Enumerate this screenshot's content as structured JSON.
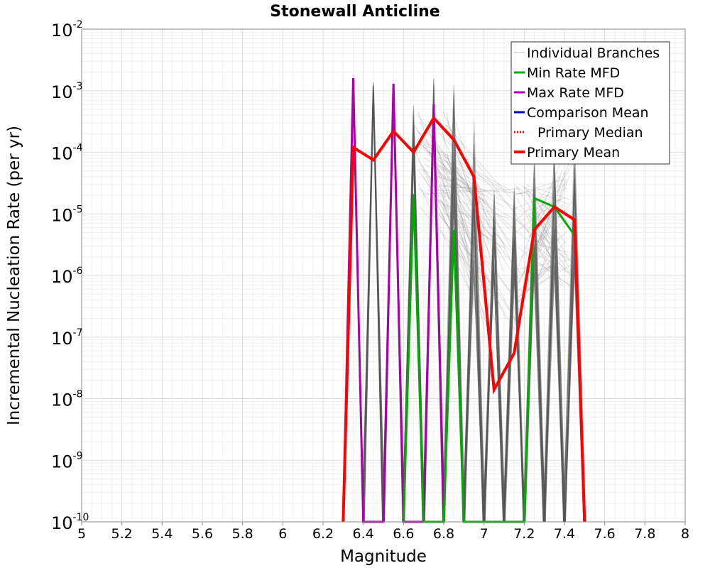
{
  "chart_data": {
    "type": "line",
    "title": "Stonewall Anticline",
    "xlabel": "Magnitude",
    "ylabel": "Incremental Nucleation Rate (per yr)",
    "xlim": [
      5,
      8
    ],
    "ylim": [
      1e-10,
      0.01
    ],
    "y_scale": "log",
    "grid": true,
    "legend_position": "top-right",
    "x_ticks": [
      "5",
      "5.2",
      "5.4",
      "5.6",
      "5.8",
      "6",
      "6.2",
      "6.4",
      "6.6",
      "6.8",
      "7",
      "7.2",
      "7.4",
      "7.6",
      "7.8",
      "8"
    ],
    "y_ticks": [
      {
        "base": "10",
        "exp": "-10"
      },
      {
        "base": "10",
        "exp": "-9"
      },
      {
        "base": "10",
        "exp": "-8"
      },
      {
        "base": "10",
        "exp": "-7"
      },
      {
        "base": "10",
        "exp": "-6"
      },
      {
        "base": "10",
        "exp": "-5"
      },
      {
        "base": "10",
        "exp": "-4"
      },
      {
        "base": "10",
        "exp": "-3"
      },
      {
        "base": "10",
        "exp": "-2"
      }
    ],
    "legend": [
      {
        "label": "Individual Branches",
        "color": "#bbbbbb",
        "style": "thin"
      },
      {
        "label": "Min Rate MFD",
        "color": "#00aa00",
        "style": "solid"
      },
      {
        "label": "Max Rate MFD",
        "color": "#aa00aa",
        "style": "solid"
      },
      {
        "label": "Comparison Mean",
        "color": "#0000dd",
        "style": "solid"
      },
      {
        "label": "Primary Median",
        "color": "#ff0000",
        "style": "dotted"
      },
      {
        "label": "Primary Mean",
        "color": "#ff0000",
        "style": "thick"
      }
    ],
    "branch_spikes": [
      {
        "x": 6.45,
        "ylow": 0.0009,
        "yhigh": 0.0014
      },
      {
        "x": 6.55,
        "ylow": 0.0009,
        "yhigh": 0.0013
      },
      {
        "x": 6.65,
        "ylow": 0.0001,
        "yhigh": 0.0007
      },
      {
        "x": 6.75,
        "ylow": 0.00015,
        "yhigh": 0.0017
      },
      {
        "x": 6.85,
        "ylow": 1e-05,
        "yhigh": 0.0015
      },
      {
        "x": 6.95,
        "ylow": 1e-06,
        "yhigh": 0.0004
      },
      {
        "x": 7.05,
        "ylow": 1e-06,
        "yhigh": 3.5e-05
      },
      {
        "x": 7.15,
        "ylow": 1e-06,
        "yhigh": 3e-05
      },
      {
        "x": 7.25,
        "ylow": 1e-06,
        "yhigh": 0.0001
      },
      {
        "x": 7.35,
        "ylow": 1e-06,
        "yhigh": 0.00013
      },
      {
        "x": 7.45,
        "ylow": 1e-06,
        "yhigh": 0.00015
      }
    ],
    "series": [
      {
        "name": "Max Rate MFD",
        "color": "#aa00aa",
        "x": [
          6.3,
          6.35,
          6.4,
          6.5,
          6.55,
          6.6,
          6.7,
          6.75,
          6.8
        ],
        "y": [
          1e-10,
          0.0016,
          1e-10,
          1e-10,
          0.0013,
          1e-10,
          1e-10,
          0.0006,
          1e-10
        ]
      },
      {
        "name": "Min Rate MFD",
        "color": "#00aa00",
        "x": [
          6.6,
          6.65,
          6.7,
          6.8,
          6.85,
          6.9,
          7.2,
          7.25,
          7.35,
          7.45
        ],
        "y": [
          1e-10,
          2.1e-05,
          1e-10,
          1e-10,
          5.5e-06,
          1e-10,
          1e-10,
          1.8e-05,
          1.3e-05,
          4.5e-06
        ]
      },
      {
        "name": "Primary Mean",
        "color": "#ff0000",
        "x": [
          6.3,
          6.35,
          6.45,
          6.55,
          6.65,
          6.75,
          6.85,
          6.95,
          7.05,
          7.15,
          7.25,
          7.35,
          7.45,
          7.5
        ],
        "y": [
          1e-10,
          0.00012,
          7.5e-05,
          0.00022,
          0.0001,
          0.00036,
          0.00016,
          4e-05,
          1.4e-08,
          5.5e-08,
          5.5e-06,
          1.3e-05,
          8e-06,
          1e-10
        ]
      }
    ]
  }
}
